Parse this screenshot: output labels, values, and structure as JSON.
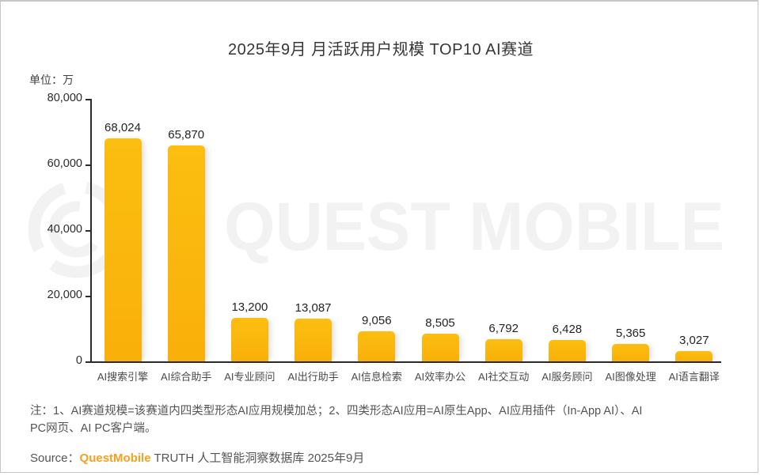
{
  "title": "2025年9月 月活跃用户规模 TOP10 AI赛道",
  "unit_label": "单位：万",
  "chart_data": {
    "type": "bar",
    "title": "2025年9月 月活跃用户规模 TOP10 AI赛道",
    "unit_label": "单位：万",
    "categories": [
      "AI搜索引擎",
      "AI综合助手",
      "AI专业顾问",
      "AI出行助手",
      "AI信息检索",
      "AI效率办公",
      "AI社交互动",
      "AI服务顾问",
      "AI图像处理",
      "AI语言翻译"
    ],
    "values": [
      68024,
      65870,
      13200,
      13087,
      9056,
      8505,
      6792,
      6428,
      5365,
      3027
    ],
    "value_labels": [
      "68,024",
      "65,870",
      "13,200",
      "13,087",
      "9,056",
      "8,505",
      "6,792",
      "6,428",
      "5,365",
      "3,027"
    ],
    "ylim": [
      0,
      80000
    ],
    "yticks": [
      0,
      20000,
      40000,
      60000,
      80000
    ],
    "ytick_labels": [
      "0",
      "20,000",
      "40,000",
      "60,000",
      "80,000"
    ],
    "grid": false,
    "legend": false,
    "bar_color": "#FBB70D",
    "axis_color": "#2B2B2B"
  },
  "watermark": {
    "text": "QUEST MOBILE",
    "logo": "questmobile-ring-logo",
    "color": "#F2F2F2"
  },
  "note": {
    "line1": "注：1、AI赛道规模=该赛道内四类型形态AI应用规模加总；2、四类形态AI应用=AI原生App、AI应用插件（In-App AI）、AI",
    "line2": "PC网页、AI PC客户端。"
  },
  "source": {
    "prefix": "Source：",
    "brand": "QuestMobile",
    "suffix": " TRUTH 人工智能洞察数据库 2025年9月",
    "brand_color": "#F7A01E"
  }
}
